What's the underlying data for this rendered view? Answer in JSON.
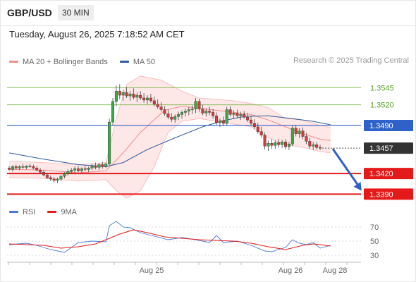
{
  "header": {
    "symbol": "GBP/USD",
    "interval": "30 MIN",
    "datetime": "Tuesday, August 26, 2025 7:18:52 AM CET"
  },
  "legend": {
    "items": [
      {
        "label": "MA 20 + Bollinger Bands",
        "color": "#f28b8b"
      },
      {
        "label": "MA 50",
        "color": "#2e5a9c"
      }
    ],
    "copyright": "Research © 2025 Trading Central"
  },
  "chart_data": [
    {
      "type": "candlestick",
      "ylim": [
        1.3375,
        1.357
      ],
      "x_tick_labels": [
        "Aug 25",
        "Aug 26",
        "Aug 28"
      ],
      "candles": [
        [
          1.3428,
          1.3431,
          1.3424,
          1.3426
        ],
        [
          1.3426,
          1.3432,
          1.3423,
          1.343
        ],
        [
          1.343,
          1.3433,
          1.3426,
          1.3428
        ],
        [
          1.3428,
          1.3432,
          1.3425,
          1.343
        ],
        [
          1.343,
          1.3434,
          1.3427,
          1.3429
        ],
        [
          1.3429,
          1.3432,
          1.3426,
          1.3431
        ],
        [
          1.3431,
          1.3434,
          1.3428,
          1.343
        ],
        [
          1.343,
          1.3433,
          1.3426,
          1.3428
        ],
        [
          1.3428,
          1.3431,
          1.3423,
          1.3425
        ],
        [
          1.3425,
          1.3428,
          1.342,
          1.3422
        ],
        [
          1.3422,
          1.3425,
          1.3416,
          1.3418
        ],
        [
          1.3418,
          1.3421,
          1.3412,
          1.3414
        ],
        [
          1.3414,
          1.3417,
          1.3409,
          1.3412
        ],
        [
          1.3412,
          1.3415,
          1.3407,
          1.341
        ],
        [
          1.341,
          1.3414,
          1.3406,
          1.3412
        ],
        [
          1.3412,
          1.3418,
          1.3409,
          1.3416
        ],
        [
          1.3416,
          1.3422,
          1.3413,
          1.342
        ],
        [
          1.342,
          1.3426,
          1.3417,
          1.3423
        ],
        [
          1.3423,
          1.3428,
          1.342,
          1.3425
        ],
        [
          1.3425,
          1.343,
          1.3421,
          1.3427
        ],
        [
          1.3427,
          1.3431,
          1.3422,
          1.3424
        ],
        [
          1.3424,
          1.3429,
          1.3421,
          1.3427
        ],
        [
          1.3427,
          1.3431,
          1.3423,
          1.3426
        ],
        [
          1.3426,
          1.343,
          1.3422,
          1.3428
        ],
        [
          1.3428,
          1.3434,
          1.3425,
          1.3431
        ],
        [
          1.3431,
          1.3436,
          1.3426,
          1.3429
        ],
        [
          1.3429,
          1.3435,
          1.3425,
          1.3433
        ],
        [
          1.3433,
          1.3437,
          1.3427,
          1.343
        ],
        [
          1.343,
          1.3436,
          1.3428,
          1.3434
        ],
        [
          1.3434,
          1.35,
          1.3432,
          1.3495
        ],
        [
          1.3495,
          1.353,
          1.349,
          1.3525
        ],
        [
          1.3525,
          1.3548,
          1.3518,
          1.354
        ],
        [
          1.354,
          1.355,
          1.3528,
          1.3534
        ],
        [
          1.3534,
          1.3542,
          1.3526,
          1.3538
        ],
        [
          1.3538,
          1.3546,
          1.353,
          1.3533
        ],
        [
          1.3533,
          1.354,
          1.3526,
          1.3536
        ],
        [
          1.3536,
          1.3544,
          1.3528,
          1.3531
        ],
        [
          1.3531,
          1.3538,
          1.3524,
          1.3534
        ],
        [
          1.3534,
          1.354,
          1.3527,
          1.353
        ],
        [
          1.353,
          1.3537,
          1.3523,
          1.3527
        ],
        [
          1.3527,
          1.3534,
          1.3521,
          1.353
        ],
        [
          1.353,
          1.3536,
          1.3523,
          1.3526
        ],
        [
          1.3526,
          1.3532,
          1.3518,
          1.3521
        ],
        [
          1.3521,
          1.3528,
          1.3514,
          1.3517
        ],
        [
          1.3517,
          1.3524,
          1.351,
          1.3513
        ],
        [
          1.3513,
          1.3518,
          1.3504,
          1.3507
        ],
        [
          1.3507,
          1.3513,
          1.3499,
          1.3502
        ],
        [
          1.3502,
          1.3508,
          1.3495,
          1.3499
        ],
        [
          1.3499,
          1.3506,
          1.3494,
          1.3503
        ],
        [
          1.3503,
          1.351,
          1.3498,
          1.3506
        ],
        [
          1.3506,
          1.3512,
          1.35,
          1.3509
        ],
        [
          1.3509,
          1.3515,
          1.3503,
          1.3511
        ],
        [
          1.3511,
          1.3517,
          1.3505,
          1.3513
        ],
        [
          1.3513,
          1.3519,
          1.3507,
          1.3514
        ],
        [
          1.3514,
          1.353,
          1.3508,
          1.3525
        ],
        [
          1.3525,
          1.3529,
          1.351,
          1.3514
        ],
        [
          1.3514,
          1.352,
          1.3505,
          1.3508
        ],
        [
          1.3508,
          1.3515,
          1.3503,
          1.3511
        ],
        [
          1.3511,
          1.3517,
          1.3505,
          1.3509
        ],
        [
          1.3509,
          1.3514,
          1.35,
          1.3504
        ],
        [
          1.3504,
          1.3509,
          1.3491,
          1.3494
        ],
        [
          1.3494,
          1.35,
          1.3488,
          1.3497
        ],
        [
          1.3497,
          1.3503,
          1.3489,
          1.3493
        ],
        [
          1.3493,
          1.3517,
          1.349,
          1.3513
        ],
        [
          1.3513,
          1.3518,
          1.3503,
          1.3506
        ],
        [
          1.3506,
          1.3512,
          1.35,
          1.3508
        ],
        [
          1.3508,
          1.3513,
          1.3501,
          1.3504
        ],
        [
          1.3504,
          1.351,
          1.3498,
          1.3506
        ],
        [
          1.3506,
          1.3511,
          1.35,
          1.3502
        ],
        [
          1.3502,
          1.3508,
          1.3495,
          1.3498
        ],
        [
          1.3498,
          1.3504,
          1.349,
          1.3493
        ],
        [
          1.3493,
          1.3499,
          1.3485,
          1.3488
        ],
        [
          1.3488,
          1.3494,
          1.3478,
          1.3481
        ],
        [
          1.3481,
          1.3488,
          1.3472,
          1.3476
        ],
        [
          1.3476,
          1.348,
          1.3455,
          1.346
        ],
        [
          1.346,
          1.3468,
          1.3453,
          1.3464
        ],
        [
          1.3464,
          1.347,
          1.3456,
          1.3461
        ],
        [
          1.3461,
          1.3468,
          1.3456,
          1.3465
        ],
        [
          1.3465,
          1.347,
          1.3458,
          1.3462
        ],
        [
          1.3462,
          1.3469,
          1.3457,
          1.3466
        ],
        [
          1.3466,
          1.347,
          1.3455,
          1.3459
        ],
        [
          1.3459,
          1.3466,
          1.3454,
          1.3463
        ],
        [
          1.3463,
          1.349,
          1.346,
          1.3486
        ],
        [
          1.3486,
          1.3491,
          1.3474,
          1.3478
        ],
        [
          1.3478,
          1.3486,
          1.3472,
          1.3482
        ],
        [
          1.3482,
          1.3487,
          1.347,
          1.3474
        ],
        [
          1.3474,
          1.3479,
          1.3463,
          1.3467
        ],
        [
          1.3467,
          1.3472,
          1.3456,
          1.346
        ],
        [
          1.346,
          1.3466,
          1.3454,
          1.3462
        ],
        [
          1.3462,
          1.3466,
          1.3455,
          1.3458
        ],
        [
          1.3458,
          1.3462,
          1.3454,
          1.3457
        ]
      ],
      "ma20": [
        [
          0,
          1.3426
        ],
        [
          10,
          1.3425
        ],
        [
          20,
          1.3421
        ],
        [
          28,
          1.3424
        ],
        [
          33,
          1.345
        ],
        [
          38,
          1.348
        ],
        [
          45,
          1.3512
        ],
        [
          50,
          1.3518
        ],
        [
          55,
          1.3515
        ],
        [
          60,
          1.3512
        ],
        [
          65,
          1.3509
        ],
        [
          70,
          1.3506
        ],
        [
          75,
          1.3498
        ],
        [
          80,
          1.3488
        ],
        [
          85,
          1.3478
        ],
        [
          90,
          1.347
        ],
        [
          93,
          1.3468
        ]
      ],
      "bollinger_upper": [
        [
          0,
          1.3438
        ],
        [
          10,
          1.3436
        ],
        [
          20,
          1.3433
        ],
        [
          28,
          1.3436
        ],
        [
          31,
          1.35
        ],
        [
          34,
          1.355
        ],
        [
          38,
          1.3562
        ],
        [
          44,
          1.3556
        ],
        [
          50,
          1.354
        ],
        [
          55,
          1.353
        ],
        [
          60,
          1.3528
        ],
        [
          65,
          1.3526
        ],
        [
          70,
          1.3522
        ],
        [
          75,
          1.3516
        ],
        [
          80,
          1.35
        ],
        [
          85,
          1.3498
        ],
        [
          90,
          1.349
        ],
        [
          93,
          1.3487
        ]
      ],
      "bollinger_lower": [
        [
          0,
          1.3414
        ],
        [
          10,
          1.3413
        ],
        [
          20,
          1.3409
        ],
        [
          28,
          1.3411
        ],
        [
          31,
          1.3395
        ],
        [
          34,
          1.3384
        ],
        [
          38,
          1.3395
        ],
        [
          42,
          1.343
        ],
        [
          46,
          1.348
        ],
        [
          50,
          1.3496
        ],
        [
          55,
          1.35
        ],
        [
          60,
          1.3496
        ],
        [
          65,
          1.3492
        ],
        [
          70,
          1.3488
        ],
        [
          75,
          1.3472
        ],
        [
          80,
          1.3462
        ],
        [
          85,
          1.3458
        ],
        [
          90,
          1.3452
        ],
        [
          93,
          1.345
        ]
      ],
      "ma50": [
        [
          0,
          1.345
        ],
        [
          10,
          1.3441
        ],
        [
          20,
          1.3433
        ],
        [
          28,
          1.343
        ],
        [
          33,
          1.3436
        ],
        [
          40,
          1.3455
        ],
        [
          48,
          1.3472
        ],
        [
          56,
          1.3488
        ],
        [
          62,
          1.3497
        ],
        [
          68,
          1.3503
        ],
        [
          75,
          1.3504
        ],
        [
          82,
          1.35
        ],
        [
          88,
          1.3496
        ],
        [
          93,
          1.3491
        ]
      ],
      "levels": [
        {
          "value": 1.3545,
          "label": "1.3545",
          "kind": "resistance",
          "color": "#7ab648"
        },
        {
          "value": 1.352,
          "label": "1.3520",
          "kind": "resistance",
          "color": "#7ab648"
        },
        {
          "value": 1.349,
          "label": "1.3490",
          "kind": "pivot",
          "color": "#2e62c9"
        },
        {
          "value": 1.3457,
          "label": "1.3457",
          "kind": "last-price",
          "color": "#333333"
        },
        {
          "value": 1.342,
          "label": "1.3420",
          "kind": "support",
          "color": "#e41a1a"
        },
        {
          "value": 1.339,
          "label": "1.3390",
          "kind": "support",
          "color": "#e41a1a"
        }
      ],
      "forecast_arrow": {
        "from": [
          93,
          1.3457
        ],
        "to": [
          102,
          1.3395
        ],
        "color": "#2e62c9"
      }
    },
    {
      "type": "line",
      "legend": [
        {
          "label": "RSI",
          "color": "#4a77d4"
        },
        {
          "label": "9MA",
          "color": "#e41a1a"
        }
      ],
      "ylim": [
        20,
        82
      ],
      "y_ticks": [
        70,
        50,
        30
      ],
      "series": [
        {
          "name": "RSI",
          "values": [
            [
              0,
              45
            ],
            [
              5,
              47
            ],
            [
              8,
              44
            ],
            [
              12,
              38
            ],
            [
              16,
              34
            ],
            [
              20,
              48
            ],
            [
              24,
              50
            ],
            [
              28,
              49
            ],
            [
              29,
              72
            ],
            [
              31,
              78
            ],
            [
              33,
              70
            ],
            [
              35,
              69
            ],
            [
              38,
              62
            ],
            [
              42,
              57
            ],
            [
              46,
              52
            ],
            [
              50,
              55
            ],
            [
              54,
              52
            ],
            [
              58,
              48
            ],
            [
              60,
              58
            ],
            [
              62,
              48
            ],
            [
              66,
              50
            ],
            [
              70,
              44
            ],
            [
              74,
              36
            ],
            [
              76,
              35
            ],
            [
              78,
              38
            ],
            [
              80,
              41
            ],
            [
              82,
              52
            ],
            [
              84,
              47
            ],
            [
              86,
              45
            ],
            [
              88,
              48
            ],
            [
              90,
              40
            ],
            [
              93,
              44
            ]
          ]
        },
        {
          "name": "9MA",
          "values": [
            [
              0,
              46
            ],
            [
              5,
              45
            ],
            [
              10,
              44
            ],
            [
              15,
              40
            ],
            [
              20,
              42
            ],
            [
              25,
              46
            ],
            [
              28,
              52
            ],
            [
              32,
              60
            ],
            [
              36,
              66
            ],
            [
              40,
              62
            ],
            [
              45,
              56
            ],
            [
              50,
              54
            ],
            [
              55,
              52
            ],
            [
              60,
              51
            ],
            [
              65,
              50
            ],
            [
              70,
              47
            ],
            [
              75,
              42
            ],
            [
              80,
              38
            ],
            [
              85,
              44
            ],
            [
              88,
              46
            ],
            [
              90,
              45
            ],
            [
              93,
              43
            ]
          ]
        }
      ]
    }
  ]
}
